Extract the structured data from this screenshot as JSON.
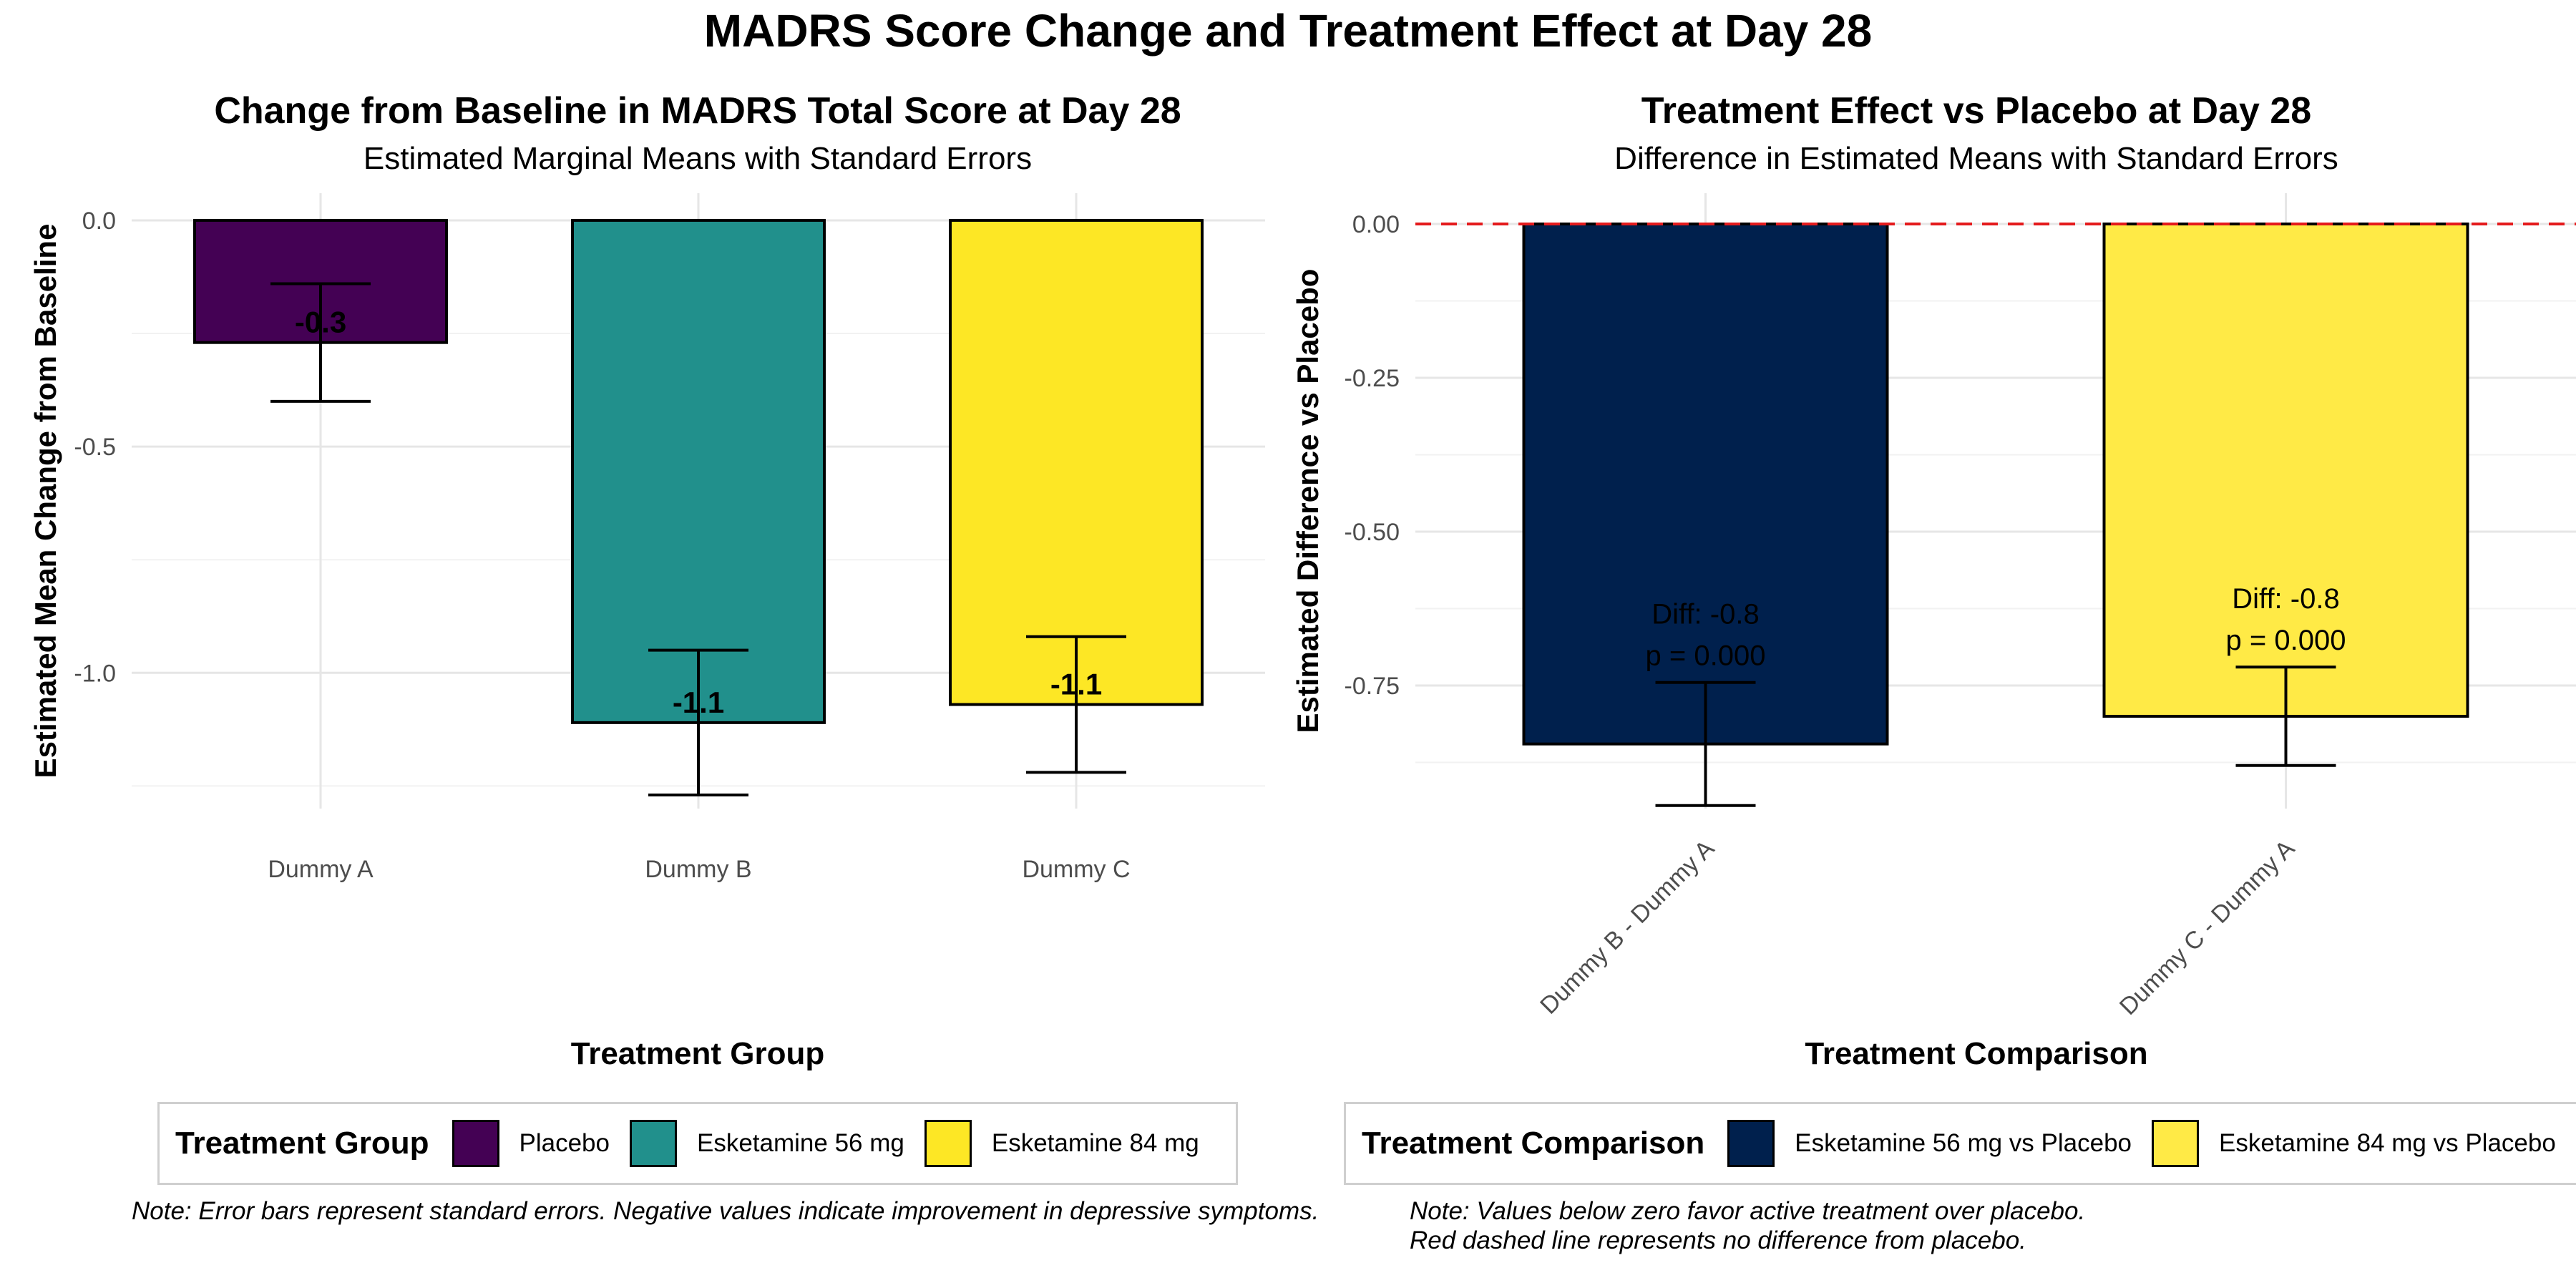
{
  "title": "MADRS Score Change and Treatment Effect at Day 28",
  "chart_data": [
    {
      "type": "bar",
      "title": "Change from Baseline in MADRS Total Score at Day 28",
      "subtitle": "Estimated Marginal Means with Standard Errors",
      "xlabel": "Treatment Group",
      "ylabel": "Estimated Mean Change from Baseline",
      "categories": [
        "Dummy A",
        "Dummy B",
        "Dummy C"
      ],
      "values": [
        -0.27,
        -1.11,
        -1.07
      ],
      "errors": [
        0.13,
        0.16,
        0.15
      ],
      "value_labels": [
        "-0.3",
        "-1.1",
        "-1.1"
      ],
      "colors": [
        "#440154",
        "#21908C",
        "#FDE725"
      ],
      "ylim": [
        -1.3,
        0.06
      ],
      "yticks": [
        0.0,
        -0.5,
        -1.0
      ],
      "ytick_labels": [
        "0.0",
        "-0.5",
        "-1.0"
      ],
      "grid": true,
      "legend": {
        "title": "Treatment Group",
        "position": "bottom",
        "entries": [
          "Placebo",
          "Esketamine 56 mg",
          "Esketamine 84 mg"
        ]
      },
      "note": "Note: Error bars represent standard errors. Negative values indicate improvement in depressive symptoms."
    },
    {
      "type": "bar",
      "title": "Treatment Effect vs Placebo at Day 28",
      "subtitle": "Difference in Estimated Means with Standard Errors",
      "xlabel": "Treatment Comparison",
      "ylabel": "Estimated Difference vs Placebo",
      "categories": [
        "Dummy B - Dummy A",
        "Dummy C - Dummy A"
      ],
      "values": [
        -0.845,
        -0.8
      ],
      "errors": [
        0.1,
        0.08
      ],
      "diff_labels": [
        "Diff: -0.8",
        "Diff: -0.8"
      ],
      "p_labels": [
        "p = 0.000",
        "p = 0.000"
      ],
      "colors": [
        "#00204D",
        "#FFEA46"
      ],
      "reference_line": {
        "y": 0,
        "color": "#E41A1C",
        "style": "dashed"
      },
      "ylim": [
        -0.95,
        0.05
      ],
      "yticks": [
        0.0,
        -0.25,
        -0.5,
        -0.75
      ],
      "ytick_labels": [
        "0.00",
        "-0.25",
        "-0.50",
        "-0.75"
      ],
      "grid": true,
      "legend": {
        "title": "Treatment Comparison",
        "position": "bottom",
        "entries": [
          "Esketamine 56 mg vs Placebo",
          "Esketamine 84 mg vs Placebo"
        ]
      },
      "note": [
        "Note: Values below zero favor active treatment over placebo.",
        "Red dashed line represents no difference from placebo."
      ]
    }
  ]
}
